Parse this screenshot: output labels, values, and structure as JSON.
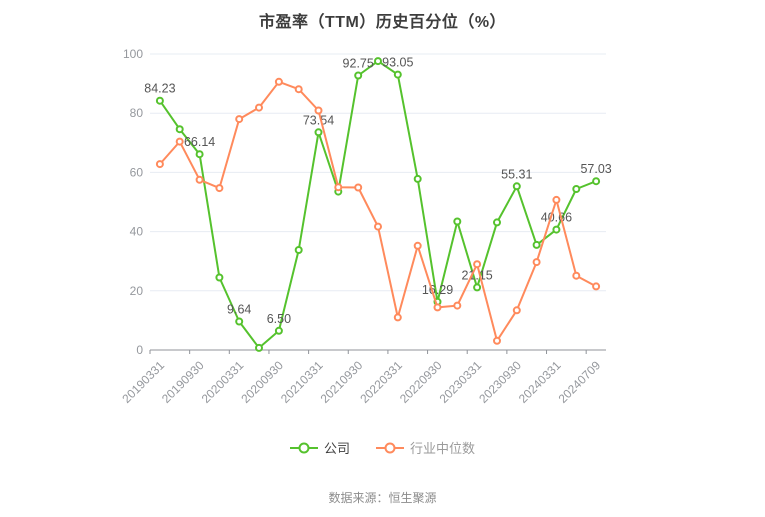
{
  "title": "市盈率（TTM）历史百分位（%）",
  "footer": "数据来源：恒生聚源",
  "colors": {
    "company": "#55c22d",
    "industry": "#ff8a5c",
    "grid_line": "#e7ecf3",
    "axis_line": "#909399",
    "axis_label": "#95989d",
    "point_label": "#555555",
    "title_text": "#3d3d3d",
    "legend_company_text": "#404040",
    "legend_industry_text": "#9b9b9b"
  },
  "legend": [
    {
      "name": "company",
      "label": "公司",
      "color": "#55c22d",
      "text_color": "#404040"
    },
    {
      "name": "industry",
      "label": "行业中位数",
      "color": "#ff8a5c",
      "text_color": "#9b9b9b"
    }
  ],
  "chart_data": {
    "type": "line",
    "title": "市盈率（TTM）历史百分位（%）",
    "x_tick_labels": [
      "20190331",
      "20190930",
      "20200331",
      "20200930",
      "20210331",
      "20210930",
      "20220331",
      "20220930",
      "20230331",
      "20230930",
      "20240331",
      "20240709"
    ],
    "x_label_every": 2,
    "points_count": 23,
    "ylim": [
      0,
      100
    ],
    "y_ticks": [
      0,
      20,
      40,
      60,
      80,
      100
    ],
    "grid": true,
    "legend_position": "bottom",
    "series": [
      {
        "name": "公司",
        "color": "#55c22d",
        "values": [
          84.23,
          74.6,
          66.14,
          24.5,
          9.64,
          0.7,
          6.5,
          33.8,
          73.54,
          53.5,
          92.75,
          97.6,
          93.05,
          57.8,
          16.29,
          43.4,
          21.15,
          43.1,
          55.31,
          35.5,
          40.66,
          54.4,
          57.03
        ],
        "point_labels": [
          "84.23",
          null,
          "66.14",
          null,
          "9.64",
          null,
          "6.50",
          null,
          "73.54",
          null,
          "92.75",
          null,
          "93.05",
          null,
          "16.29",
          null,
          "21.15",
          null,
          "55.31",
          null,
          "40.66",
          null,
          "57.03"
        ]
      },
      {
        "name": "行业中位数",
        "color": "#ff8a5c",
        "values": [
          62.8,
          70.4,
          57.5,
          54.7,
          78.0,
          81.9,
          90.6,
          88.1,
          80.9,
          55.0,
          54.9,
          41.7,
          11.0,
          35.2,
          14.4,
          15.0,
          29.0,
          3.1,
          13.4,
          29.7,
          50.7,
          25.1,
          21.5
        ],
        "point_labels": [
          null,
          null,
          null,
          null,
          null,
          null,
          null,
          null,
          null,
          null,
          null,
          null,
          null,
          null,
          null,
          null,
          null,
          null,
          null,
          null,
          null,
          null,
          null
        ]
      }
    ]
  }
}
